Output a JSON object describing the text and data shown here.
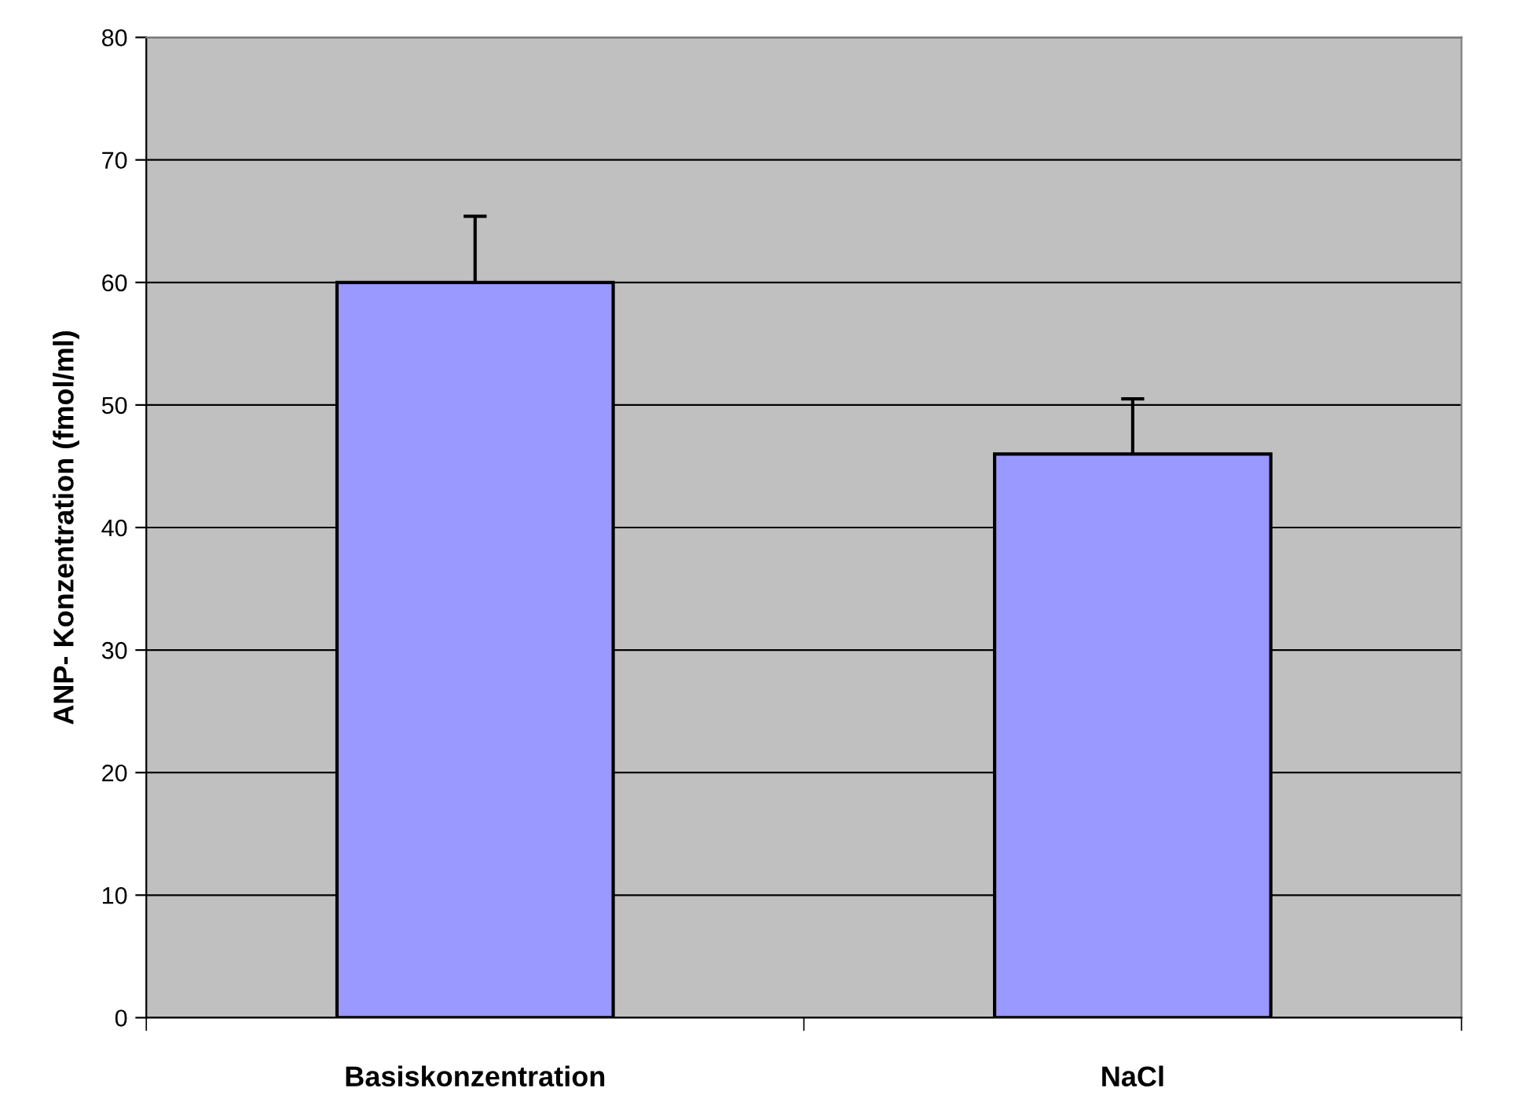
{
  "chart_data": {
    "type": "bar",
    "ylabel": "ANP- Konzentration (fmol/ml)",
    "categories": [
      "Basiskonzentration",
      "NaCl"
    ],
    "values": [
      60,
      46
    ],
    "errors": [
      [
        60,
        65.4
      ],
      [
        46,
        50.5
      ]
    ],
    "color": "#9999ff",
    "ylim": [
      0,
      80
    ],
    "yticks": [
      0,
      10,
      20,
      30,
      40,
      50,
      60,
      70,
      80
    ],
    "grid": "y",
    "legend": false
  }
}
